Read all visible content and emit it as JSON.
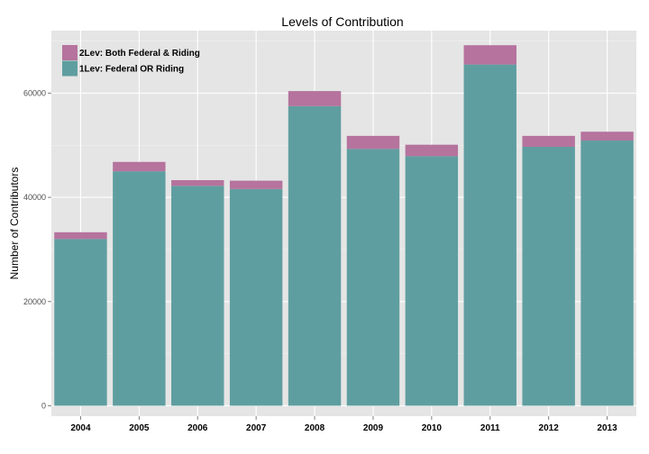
{
  "chart_data": {
    "type": "bar",
    "stacked": true,
    "title": "Levels of Contribution",
    "xlabel": "",
    "ylabel": "Number of Contributors",
    "categories": [
      "2004",
      "2005",
      "2006",
      "2007",
      "2008",
      "2009",
      "2010",
      "2011",
      "2012",
      "2013"
    ],
    "series": [
      {
        "name": "1Lev: Federal OR Riding",
        "color": "#5f9ea0",
        "values": [
          32000,
          45000,
          42200,
          41600,
          57500,
          49300,
          47900,
          65500,
          49700,
          50900
        ]
      },
      {
        "name": "2Lev: Both Federal & Riding",
        "color": "#b5739d",
        "values": [
          1300,
          1800,
          1100,
          1600,
          2900,
          2500,
          2200,
          3700,
          2100,
          1700
        ]
      }
    ],
    "legend_order": [
      1,
      0
    ],
    "yticks": [
      0,
      20000,
      40000,
      60000
    ],
    "ylim": [
      -2000,
      72000
    ],
    "grid": true,
    "legend_position": "top-left"
  }
}
